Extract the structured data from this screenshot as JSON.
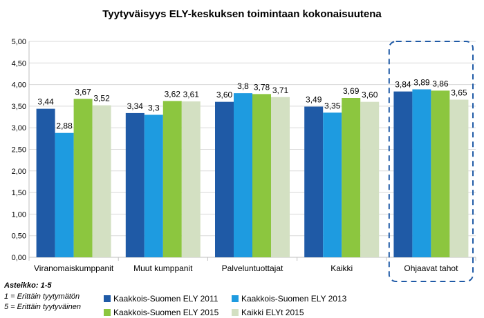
{
  "chart_data": {
    "type": "bar",
    "title": "Tyytyväisyys ELY-keskuksen toimintaan kokonaisuutena",
    "categories": [
      "Viranomaiskumppanit",
      "Muut kumppanit",
      "Palveluntuottajat",
      "Kaikki",
      "Ohjaavat tahot"
    ],
    "series": [
      {
        "name": "Kaakkois-Suomen ELY 2011",
        "color": "#1f5aa6",
        "values": [
          3.44,
          3.34,
          3.6,
          3.49,
          3.84
        ],
        "labels": [
          "3,44",
          "3,34",
          "3,60",
          "3,49",
          "3,84"
        ]
      },
      {
        "name": "Kaakkois-Suomen ELY 2013",
        "color": "#1e9be0",
        "values": [
          2.88,
          3.3,
          3.8,
          3.35,
          3.89
        ],
        "labels": [
          "2,88",
          "3,3",
          "3,8",
          "3,35",
          "3,89"
        ]
      },
      {
        "name": "Kaakkois-Suomen ELY 2015",
        "color": "#8cc63f",
        "values": [
          3.67,
          3.62,
          3.78,
          3.69,
          3.86
        ],
        "labels": [
          "3,67",
          "3,62",
          "3,78",
          "3,69",
          "3,86"
        ]
      },
      {
        "name": "Kaikki ELYt 2015",
        "color": "#d3e0c2",
        "values": [
          3.52,
          3.61,
          3.71,
          3.6,
          3.65
        ],
        "labels": [
          "3,52",
          "3,61",
          "3,71",
          "3,60",
          "3,65"
        ]
      }
    ],
    "ylim": [
      0,
      5
    ],
    "yticks": [
      "0,00",
      "0,50",
      "1,00",
      "1,50",
      "2,00",
      "2,50",
      "3,00",
      "3,50",
      "4,00",
      "4,50",
      "5,00"
    ],
    "grid": true,
    "legend_position": "bottom",
    "highlighted_category": "Ohjaavat tahot"
  },
  "scale_note": {
    "heading": "Asteikko: 1-5",
    "lines": [
      "1 = Erittäin tyytymätön",
      "5 = Erittäin tyytyväinen"
    ]
  }
}
